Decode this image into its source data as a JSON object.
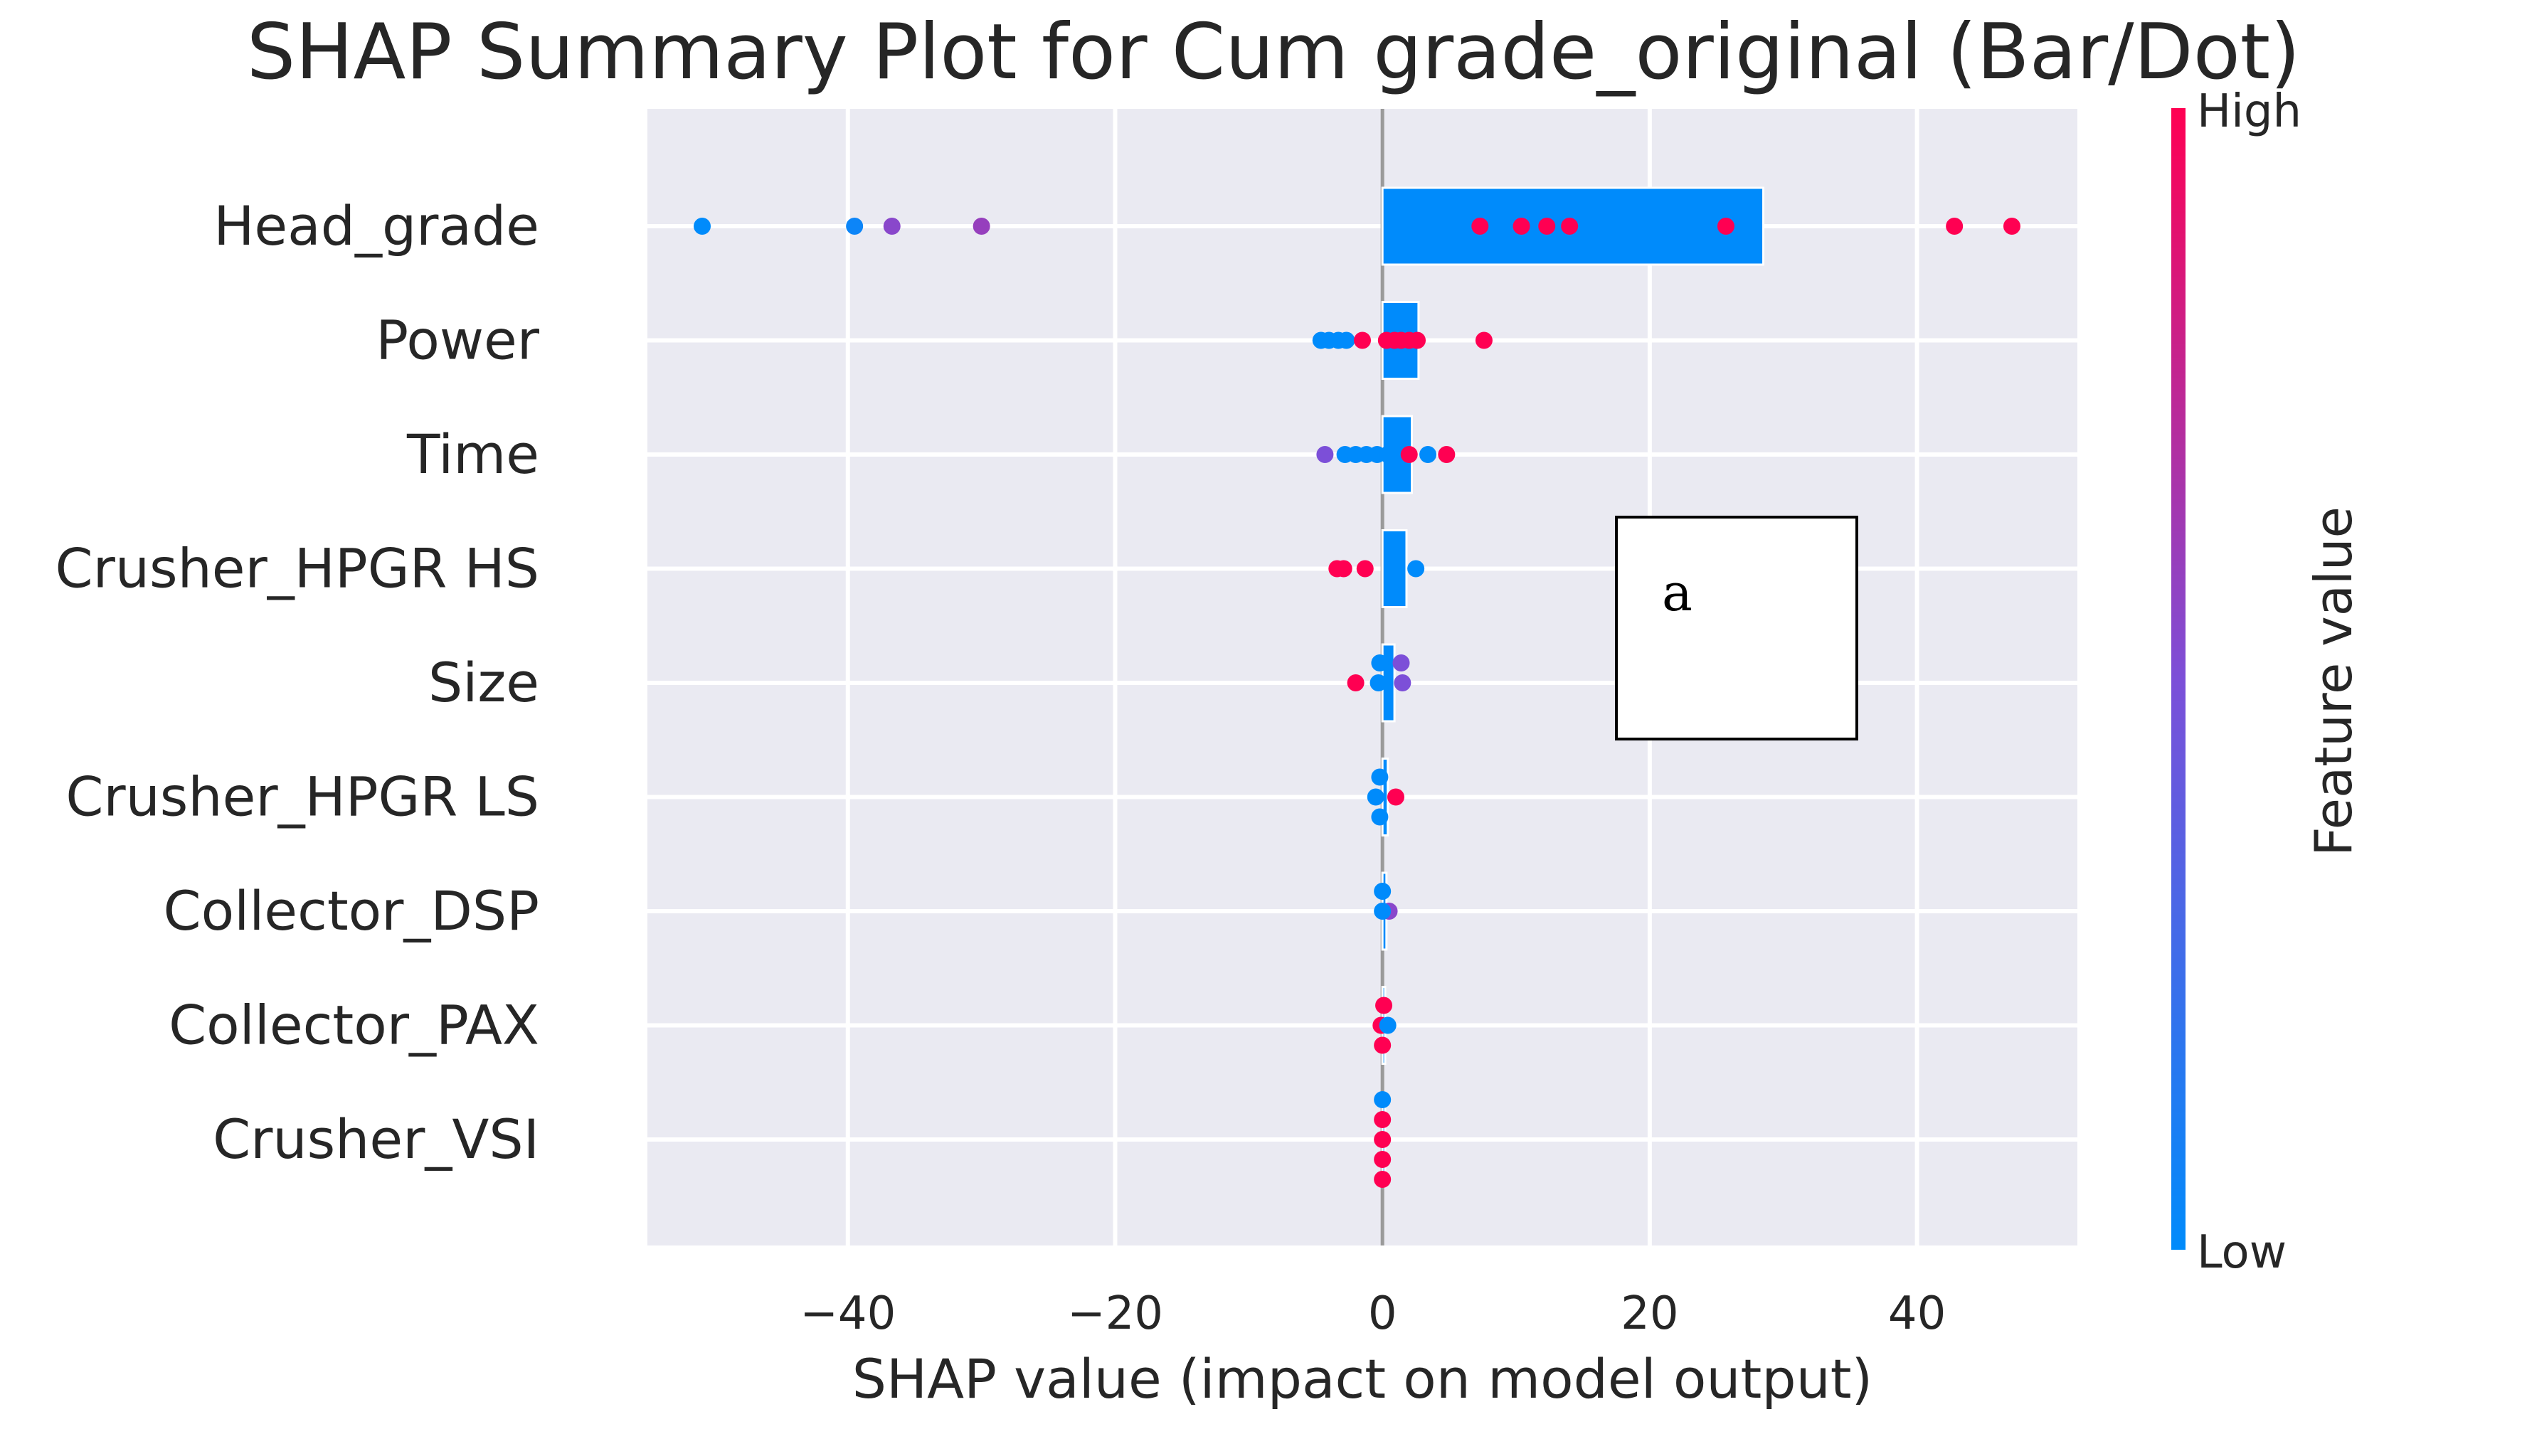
{
  "chart_data": {
    "type": "scatter",
    "title": "SHAP Summary Plot for Cum grade_original (Bar/Dot)",
    "xlabel": "SHAP value (impact on model output)",
    "ylabel": "",
    "xlim": [
      -55,
      52
    ],
    "xticks": [
      -40,
      -20,
      0,
      20,
      40
    ],
    "xtick_labels": [
      "−40",
      "−20",
      "0",
      "20",
      "40"
    ],
    "grid": true,
    "categories": [
      "Head_grade",
      "Power",
      "Time",
      "Crusher_HPGR HS",
      "Size",
      "Crusher_HPGR LS",
      "Collector_DSP",
      "Collector_PAX",
      "Crusher_VSI"
    ],
    "bars": [
      {
        "category": "Head_grade",
        "value": 28.5
      },
      {
        "category": "Power",
        "value": 2.7
      },
      {
        "category": "Time",
        "value": 2.2
      },
      {
        "category": "Crusher_HPGR HS",
        "value": 1.8
      },
      {
        "category": "Size",
        "value": 0.9
      },
      {
        "category": "Crusher_HPGR LS",
        "value": 0.4
      },
      {
        "category": "Collector_DSP",
        "value": 0.3
      },
      {
        "category": "Collector_PAX",
        "value": 0.2
      },
      {
        "category": "Crusher_VSI",
        "value": 0.2
      }
    ],
    "points": [
      {
        "category": "Head_grade",
        "items": [
          {
            "x": -50.9,
            "off": 0,
            "f": 0.0
          },
          {
            "x": -39.5,
            "off": 0,
            "f": 0.05
          },
          {
            "x": -36.7,
            "off": 0,
            "f": 0.55
          },
          {
            "x": -30.0,
            "off": 0,
            "f": 0.6
          },
          {
            "x": 7.3,
            "off": 0,
            "f": 1.0
          },
          {
            "x": 10.4,
            "off": 0,
            "f": 1.0
          },
          {
            "x": 12.3,
            "off": 0,
            "f": 1.0
          },
          {
            "x": 14.0,
            "off": 0,
            "f": 1.0
          },
          {
            "x": 25.7,
            "off": 0,
            "f": 1.0
          },
          {
            "x": 42.8,
            "off": 0,
            "f": 1.0
          },
          {
            "x": 47.1,
            "off": 0,
            "f": 1.0
          }
        ]
      },
      {
        "category": "Power",
        "items": [
          {
            "x": -4.6,
            "off": 0,
            "f": 0.0
          },
          {
            "x": -4.0,
            "off": 0,
            "f": 0.0
          },
          {
            "x": -3.3,
            "off": 0,
            "f": 0.0
          },
          {
            "x": -2.7,
            "off": 0,
            "f": 0.0
          },
          {
            "x": -1.5,
            "off": 0,
            "f": 1.0
          },
          {
            "x": 0.3,
            "off": 0,
            "f": 1.0
          },
          {
            "x": 0.9,
            "off": 0,
            "f": 1.0
          },
          {
            "x": 1.4,
            "off": 0,
            "f": 1.0
          },
          {
            "x": 2.0,
            "off": 0,
            "f": 1.0
          },
          {
            "x": 2.6,
            "off": 0,
            "f": 1.0
          },
          {
            "x": 7.6,
            "off": 0,
            "f": 1.0
          }
        ]
      },
      {
        "category": "Time",
        "items": [
          {
            "x": -4.3,
            "off": 0,
            "f": 0.5
          },
          {
            "x": -2.8,
            "off": 0,
            "f": 0.0
          },
          {
            "x": -2.0,
            "off": 0,
            "f": 0.0
          },
          {
            "x": -1.2,
            "off": 0,
            "f": 0.0
          },
          {
            "x": -0.4,
            "off": 0,
            "f": 0.0
          },
          {
            "x": 0.4,
            "off": 0,
            "f": 0.0
          },
          {
            "x": 2.0,
            "off": 0,
            "f": 1.0
          },
          {
            "x": 3.4,
            "off": 0,
            "f": 0.0
          },
          {
            "x": 4.8,
            "off": 0,
            "f": 1.0
          }
        ]
      },
      {
        "category": "Crusher_HPGR HS",
        "items": [
          {
            "x": -3.4,
            "off": 0,
            "f": 1.0
          },
          {
            "x": -2.9,
            "off": 0,
            "f": 1.0
          },
          {
            "x": -1.3,
            "off": 0,
            "f": 1.0
          },
          {
            "x": 2.5,
            "off": 0,
            "f": 0.0
          }
        ]
      },
      {
        "category": "Size",
        "items": [
          {
            "x": -0.2,
            "off": -1,
            "f": 0.0
          },
          {
            "x": 1.4,
            "off": -1,
            "f": 0.5
          },
          {
            "x": -2.0,
            "off": 0,
            "f": 1.0
          },
          {
            "x": -0.3,
            "off": 0,
            "f": 0.0
          },
          {
            "x": 1.5,
            "off": 0,
            "f": 0.5
          }
        ]
      },
      {
        "category": "Crusher_HPGR LS",
        "items": [
          {
            "x": -0.2,
            "off": -1,
            "f": 0.0
          },
          {
            "x": -0.5,
            "off": 0,
            "f": 0.0
          },
          {
            "x": 1.0,
            "off": 0,
            "f": 1.0
          },
          {
            "x": -0.2,
            "off": 1,
            "f": 0.0
          }
        ]
      },
      {
        "category": "Collector_DSP",
        "items": [
          {
            "x": 0.0,
            "off": -1,
            "f": 0.0
          },
          {
            "x": 0.5,
            "off": 0,
            "f": 0.55
          },
          {
            "x": 0.0,
            "off": 0,
            "f": 0.0
          }
        ]
      },
      {
        "category": "Collector_PAX",
        "items": [
          {
            "x": 0.1,
            "off": -1,
            "f": 1.0
          },
          {
            "x": -0.1,
            "off": 0,
            "f": 1.0
          },
          {
            "x": 0.4,
            "off": 0,
            "f": 0.0
          },
          {
            "x": 0.0,
            "off": 1,
            "f": 1.0
          }
        ]
      },
      {
        "category": "Crusher_VSI",
        "items": [
          {
            "x": 0.0,
            "off": -2,
            "f": 0.0
          },
          {
            "x": 0.0,
            "off": -1,
            "f": 1.0
          },
          {
            "x": 0.0,
            "off": 0,
            "f": 1.0
          },
          {
            "x": 0.0,
            "off": 1,
            "f": 1.0
          },
          {
            "x": 0.0,
            "off": 2,
            "f": 1.0
          }
        ]
      }
    ],
    "colorbar": {
      "title": "Feature value",
      "high_label": "High",
      "low_label": "Low",
      "low_color": "#008bfb",
      "mid_color": "#7c4fd8",
      "high_color": "#ff0052"
    },
    "bar_color": "#008bfb",
    "plot_background": "#eaeaf2",
    "annotation": {
      "text": "a"
    }
  }
}
